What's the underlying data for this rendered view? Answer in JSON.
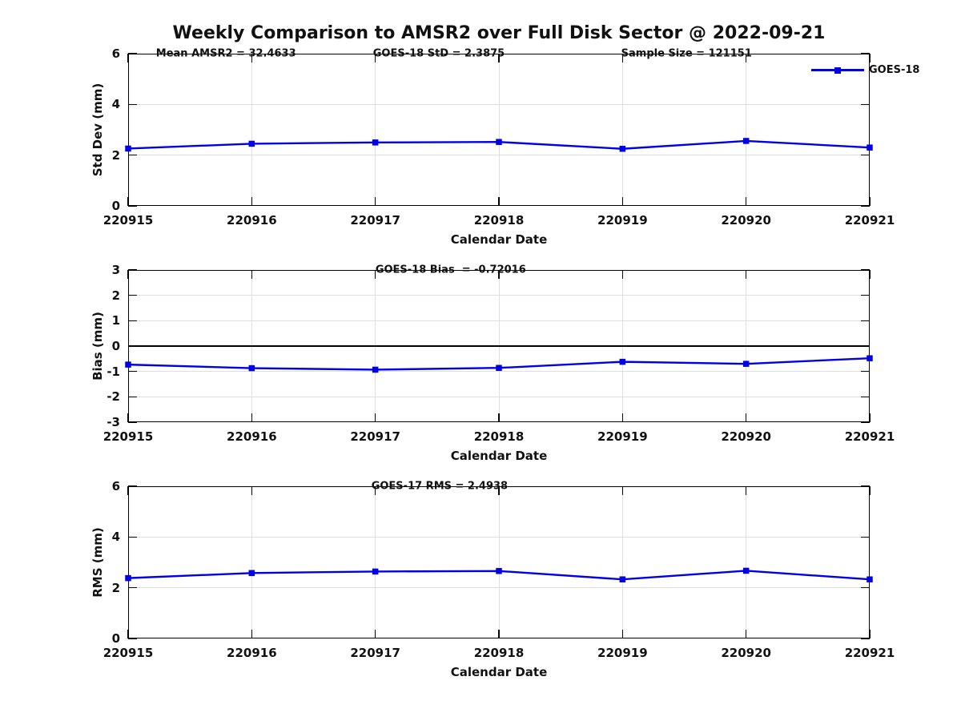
{
  "title": "Weekly Comparison to AMSR2 over Full Disk Sector @ 2022-09-21",
  "legend": {
    "label": "GOES-18"
  },
  "colors": {
    "line": "#0000e6",
    "grid": "#dedede",
    "axis": "#000000",
    "text": "#111111"
  },
  "chart_data": [
    {
      "id": "std_dev",
      "type": "line",
      "ylabel": "Std Dev (mm)",
      "xlabel": "Calendar Date",
      "categories": [
        "220915",
        "220916",
        "220917",
        "220918",
        "220919",
        "220920",
        "220921"
      ],
      "series": [
        {
          "name": "GOES-18",
          "values": [
            2.26,
            2.45,
            2.5,
            2.52,
            2.25,
            2.56,
            2.3
          ]
        }
      ],
      "ylim": [
        0,
        6
      ],
      "yticks": [
        0,
        2,
        4,
        6
      ],
      "grid": true,
      "legend_position": "top-right",
      "annotations": [
        {
          "text": "Mean AMSR2 = 32.4633",
          "xfrac": 0.132
        },
        {
          "text": "GOES-18 StD = 2.3875",
          "xfrac": 0.419
        },
        {
          "text": "Sample Size = 121151",
          "xfrac": 0.753
        }
      ]
    },
    {
      "id": "bias",
      "type": "line",
      "ylabel": "Bias (mm)",
      "xlabel": "Calendar Date",
      "categories": [
        "220915",
        "220916",
        "220917",
        "220918",
        "220919",
        "220920",
        "220921"
      ],
      "series": [
        {
          "name": "GOES-18",
          "values": [
            -0.73,
            -0.87,
            -0.93,
            -0.86,
            -0.62,
            -0.7,
            -0.48
          ]
        }
      ],
      "ylim": [
        -3,
        3
      ],
      "yticks": [
        -3,
        -2,
        -1,
        0,
        1,
        2,
        3
      ],
      "grid": true,
      "zero_line": true,
      "annotations": [
        {
          "text": "GOES-18 Bias  = -0.72016",
          "xfrac": 0.435
        }
      ]
    },
    {
      "id": "rms",
      "type": "line",
      "ylabel": "RMS (mm)",
      "xlabel": "Calendar Date",
      "categories": [
        "220915",
        "220916",
        "220917",
        "220918",
        "220919",
        "220920",
        "220921"
      ],
      "series": [
        {
          "name": "GOES-18",
          "values": [
            2.38,
            2.58,
            2.64,
            2.66,
            2.33,
            2.67,
            2.33
          ]
        }
      ],
      "ylim": [
        0,
        6
      ],
      "yticks": [
        0,
        2,
        4,
        6
      ],
      "grid": true,
      "annotations": [
        {
          "text": "GOES-17 RMS = 2.4938",
          "xfrac": 0.42
        }
      ]
    }
  ]
}
